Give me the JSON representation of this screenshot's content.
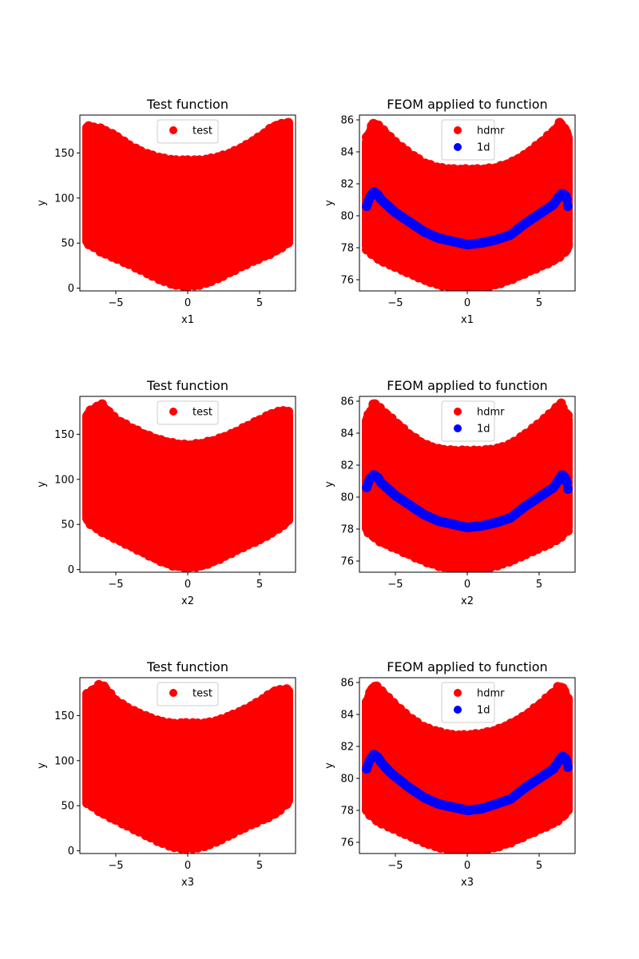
{
  "chart_data": [
    {
      "type": "scatter",
      "title": "Test function",
      "xlabel": "x1",
      "ylabel": "y",
      "xlim": [
        -7.5,
        7.5
      ],
      "ylim": [
        -3,
        192
      ],
      "xticks": [
        -5,
        0,
        5
      ],
      "yticks": [
        0,
        50,
        100,
        150
      ],
      "legend": "upper center",
      "colors": {
        "test": "#ff0000"
      },
      "series": [
        {
          "name": "test",
          "kind": "band",
          "color": "#ff0000",
          "x": [
            -7,
            -6,
            -5,
            -4,
            -3,
            -2,
            -1,
            0,
            1,
            2,
            3,
            4,
            5,
            6,
            7
          ],
          "upper": [
            178,
            175,
            167,
            156,
            148,
            143,
            140,
            140,
            140,
            143,
            148,
            156,
            166,
            178,
            182
          ],
          "lower": [
            52,
            42,
            35,
            28,
            20,
            12,
            6,
            4,
            6,
            12,
            20,
            28,
            35,
            42,
            52
          ]
        }
      ]
    },
    {
      "type": "scatter",
      "title": "FEOM applied to function",
      "xlabel": "x1",
      "ylabel": "y",
      "xlim": [
        -7.5,
        7.5
      ],
      "ylim": [
        75.3,
        86.3
      ],
      "xticks": [
        -5,
        0,
        5
      ],
      "yticks": [
        76,
        78,
        80,
        82,
        84,
        86
      ],
      "legend": "upper center",
      "colors": {
        "hdmr": "#ff0000",
        "1d": "#0000ff"
      },
      "series": [
        {
          "name": "hdmr",
          "kind": "band",
          "color": "#ff0000",
          "x": [
            -7,
            -6.5,
            -6,
            -5,
            -4,
            -3,
            -2,
            -1,
            0,
            1,
            2,
            3,
            4,
            5,
            6,
            6.5,
            7
          ],
          "upper": [
            84.8,
            85.8,
            85.4,
            84.5,
            83.8,
            83.2,
            82.9,
            82.8,
            82.8,
            82.8,
            82.9,
            83.2,
            83.7,
            84.4,
            85.2,
            85.8,
            85.0
          ],
          "lower": [
            78.0,
            77.6,
            77.3,
            76.9,
            76.5,
            76.1,
            75.8,
            75.6,
            75.5,
            75.6,
            75.8,
            76.1,
            76.5,
            76.9,
            77.3,
            77.6,
            78.0
          ]
        },
        {
          "name": "1d",
          "kind": "line",
          "color": "#0000ff",
          "x": [
            -7,
            -6.8,
            -6.5,
            -6.2,
            -6,
            -5.5,
            -5,
            -4,
            -3,
            -2,
            -1,
            0,
            1,
            2,
            3,
            4,
            5,
            5.5,
            6,
            6.3,
            6.6,
            6.9,
            7
          ],
          "y": [
            80.6,
            81.1,
            81.5,
            81.3,
            81.0,
            80.6,
            80.2,
            79.6,
            79.0,
            78.6,
            78.4,
            78.2,
            78.3,
            78.5,
            78.8,
            79.5,
            80.1,
            80.4,
            80.7,
            81.1,
            81.4,
            81.2,
            80.6
          ]
        }
      ]
    },
    {
      "type": "scatter",
      "title": "Test function",
      "xlabel": "x2",
      "ylabel": "y",
      "xlim": [
        -7.5,
        7.5
      ],
      "ylim": [
        -3,
        192
      ],
      "xticks": [
        -5,
        0,
        5
      ],
      "yticks": [
        0,
        50,
        100,
        150
      ],
      "legend": "upper center",
      "colors": {
        "test": "#ff0000"
      },
      "series": [
        {
          "name": "test",
          "kind": "band",
          "color": "#ff0000",
          "x": [
            -7,
            -6,
            -5,
            -4,
            -3,
            -2,
            -1,
            0,
            1,
            2,
            3,
            4,
            5,
            6,
            7
          ],
          "upper": [
            172,
            182,
            165,
            156,
            148,
            142,
            138,
            136,
            138,
            142,
            148,
            156,
            164,
            172,
            175
          ],
          "lower": [
            55,
            44,
            36,
            28,
            20,
            12,
            6,
            4,
            6,
            12,
            20,
            28,
            35,
            44,
            55
          ]
        }
      ]
    },
    {
      "type": "scatter",
      "title": "FEOM applied to function",
      "xlabel": "x2",
      "ylabel": "y",
      "xlim": [
        -7.5,
        7.5
      ],
      "ylim": [
        75.3,
        86.3
      ],
      "xticks": [
        -5,
        0,
        5
      ],
      "yticks": [
        76,
        78,
        80,
        82,
        84,
        86
      ],
      "legend": "upper center",
      "colors": {
        "hdmr": "#ff0000",
        "1d": "#0000ff"
      },
      "series": [
        {
          "name": "hdmr",
          "kind": "band",
          "color": "#ff0000",
          "x": [
            -7,
            -6.5,
            -6,
            -5,
            -4,
            -3,
            -2,
            -1,
            0,
            1,
            2,
            3,
            4,
            5,
            6,
            6.5,
            7
          ],
          "upper": [
            84.8,
            85.8,
            85.4,
            84.6,
            83.8,
            83.2,
            82.9,
            82.8,
            82.8,
            82.8,
            82.9,
            83.2,
            83.8,
            84.5,
            85.3,
            85.8,
            85.0
          ],
          "lower": [
            78.0,
            77.6,
            77.3,
            76.9,
            76.5,
            76.1,
            75.8,
            75.6,
            75.5,
            75.6,
            75.8,
            76.1,
            76.5,
            76.9,
            77.3,
            77.6,
            78.0
          ]
        },
        {
          "name": "1d",
          "kind": "line",
          "color": "#0000ff",
          "x": [
            -7,
            -6.8,
            -6.5,
            -6.2,
            -6,
            -5.5,
            -5,
            -4,
            -3,
            -2,
            -1,
            0,
            1,
            2,
            3,
            4,
            5,
            5.5,
            6,
            6.3,
            6.6,
            6.9,
            7
          ],
          "y": [
            80.6,
            81.1,
            81.4,
            81.2,
            80.9,
            80.5,
            80.1,
            79.5,
            78.9,
            78.5,
            78.3,
            78.1,
            78.2,
            78.4,
            78.7,
            79.4,
            80.0,
            80.3,
            80.6,
            81.0,
            81.4,
            81.1,
            80.5
          ]
        }
      ]
    },
    {
      "type": "scatter",
      "title": "Test function",
      "xlabel": "x3",
      "ylabel": "y",
      "xlim": [
        -7.5,
        7.5
      ],
      "ylim": [
        -3,
        192
      ],
      "xticks": [
        -5,
        0,
        5
      ],
      "yticks": [
        0,
        50,
        100,
        150
      ],
      "legend": "upper center",
      "colors": {
        "test": "#ff0000"
      },
      "series": [
        {
          "name": "test",
          "kind": "band",
          "color": "#ff0000",
          "x": [
            -7,
            -6,
            -5,
            -4,
            -3,
            -2,
            -1,
            0,
            1,
            2,
            3,
            4,
            5,
            6,
            7
          ],
          "upper": [
            172,
            184,
            165,
            155,
            148,
            142,
            139,
            140,
            139,
            142,
            148,
            155,
            164,
            175,
            178
          ],
          "lower": [
            55,
            44,
            36,
            28,
            20,
            12,
            6,
            4,
            6,
            12,
            20,
            28,
            35,
            42,
            55
          ]
        }
      ]
    },
    {
      "type": "scatter",
      "title": "FEOM applied to function",
      "xlabel": "x3",
      "ylabel": "y",
      "xlim": [
        -7.5,
        7.5
      ],
      "ylim": [
        75.3,
        86.3
      ],
      "xticks": [
        -5,
        0,
        5
      ],
      "yticks": [
        76,
        78,
        80,
        82,
        84,
        86
      ],
      "legend": "upper center",
      "colors": {
        "hdmr": "#ff0000",
        "1d": "#0000ff"
      },
      "series": [
        {
          "name": "hdmr",
          "kind": "band",
          "color": "#ff0000",
          "x": [
            -7,
            -6.5,
            -6,
            -5,
            -4,
            -3,
            -2,
            -1,
            0,
            1,
            2,
            3,
            4,
            5,
            6,
            6.5,
            7
          ],
          "upper": [
            84.8,
            85.8,
            85.4,
            84.5,
            83.7,
            83.1,
            82.8,
            82.6,
            82.6,
            82.7,
            82.9,
            83.3,
            83.8,
            84.5,
            85.3,
            85.8,
            85.0
          ],
          "lower": [
            78.0,
            77.6,
            77.3,
            76.9,
            76.5,
            76.1,
            75.8,
            75.6,
            75.5,
            75.6,
            75.8,
            76.1,
            76.5,
            76.9,
            77.3,
            77.6,
            78.0
          ]
        },
        {
          "name": "1d",
          "kind": "line",
          "color": "#0000ff",
          "x": [
            -7,
            -6.8,
            -6.5,
            -6.2,
            -6,
            -5.5,
            -5,
            -4,
            -3,
            -2,
            -1,
            0,
            1,
            2,
            3,
            4,
            5,
            5.5,
            6,
            6.3,
            6.6,
            6.9,
            7
          ],
          "y": [
            80.6,
            81.1,
            81.5,
            81.3,
            81.0,
            80.5,
            80.1,
            79.4,
            78.8,
            78.4,
            78.2,
            78.0,
            78.1,
            78.4,
            78.7,
            79.4,
            80.0,
            80.3,
            80.6,
            81.0,
            81.4,
            81.2,
            80.7
          ]
        }
      ]
    }
  ]
}
